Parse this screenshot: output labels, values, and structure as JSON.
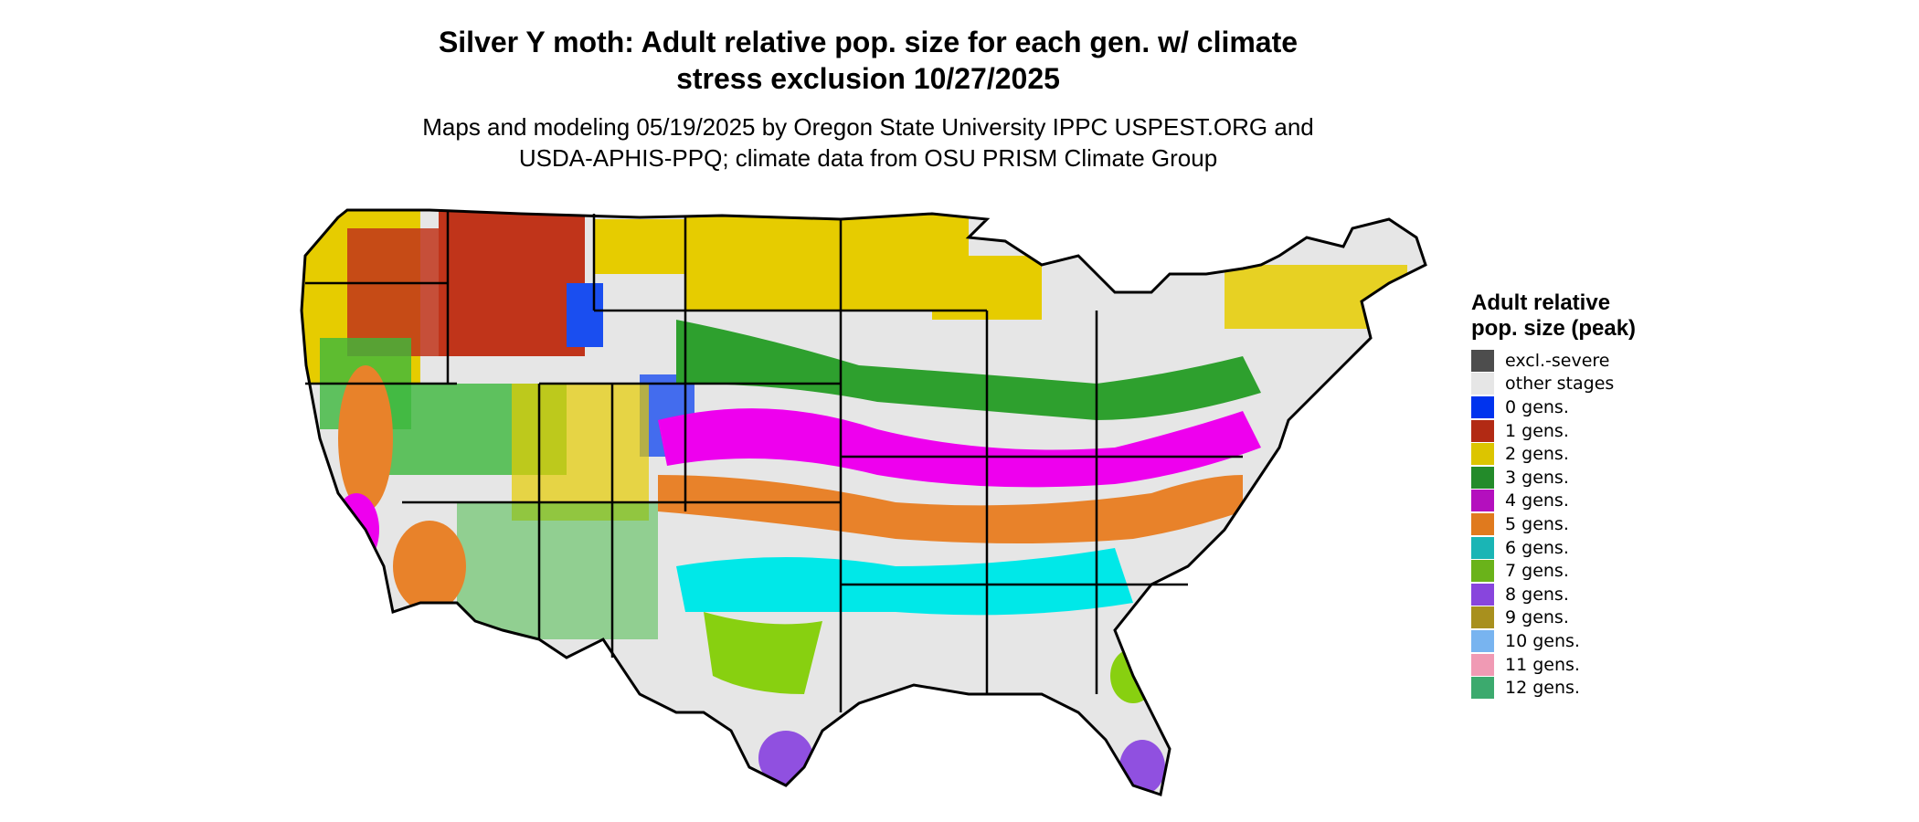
{
  "title_line1": "Silver Y moth: Adult relative pop. size for each gen. w/ climate",
  "title_line2": "stress exclusion 10/27/2025",
  "subtitle_line1": "Maps and modeling 05/19/2025 by Oregon State University IPPC USPEST.ORG and",
  "subtitle_line2": "USDA-APHIS-PPQ; climate data from OSU PRISM Climate Group",
  "legend": {
    "title": "Adult relative pop. size (peak)",
    "items": [
      {
        "label": "excl.-severe",
        "color": "#4d4d4d"
      },
      {
        "label": "other stages",
        "color": "#e6e6e6"
      },
      {
        "label": "0 gens.",
        "color": "#0033ee"
      },
      {
        "label": "1 gens.",
        "color": "#b22a14"
      },
      {
        "label": "2 gens.",
        "color": "#dcc500"
      },
      {
        "label": "3 gens.",
        "color": "#238b2a"
      },
      {
        "label": "4 gens.",
        "color": "#b40fbe"
      },
      {
        "label": "5 gens.",
        "color": "#e07a1e"
      },
      {
        "label": "6 gens.",
        "color": "#1ab5b5"
      },
      {
        "label": "7 gens.",
        "color": "#6ab31a"
      },
      {
        "label": "8 gens.",
        "color": "#8845dd"
      },
      {
        "label": "9 gens.",
        "color": "#a8901e"
      },
      {
        "label": "10 gens.",
        "color": "#78b4f0"
      },
      {
        "label": "11 gens.",
        "color": "#f09ab4"
      },
      {
        "label": "12 gens.",
        "color": "#3caa6e"
      }
    ]
  },
  "map_colors": {
    "background_land": "#e6e6e6",
    "magenta": "#ee00ee",
    "cyan": "#00e8e8",
    "orange": "#e8822a",
    "green": "#3cb83c",
    "yellow": "#e6cc00",
    "red": "#c0341a",
    "blue": "#1a4ef0",
    "lime": "#88d010",
    "purple": "#9050e0",
    "outline": "#000000"
  }
}
